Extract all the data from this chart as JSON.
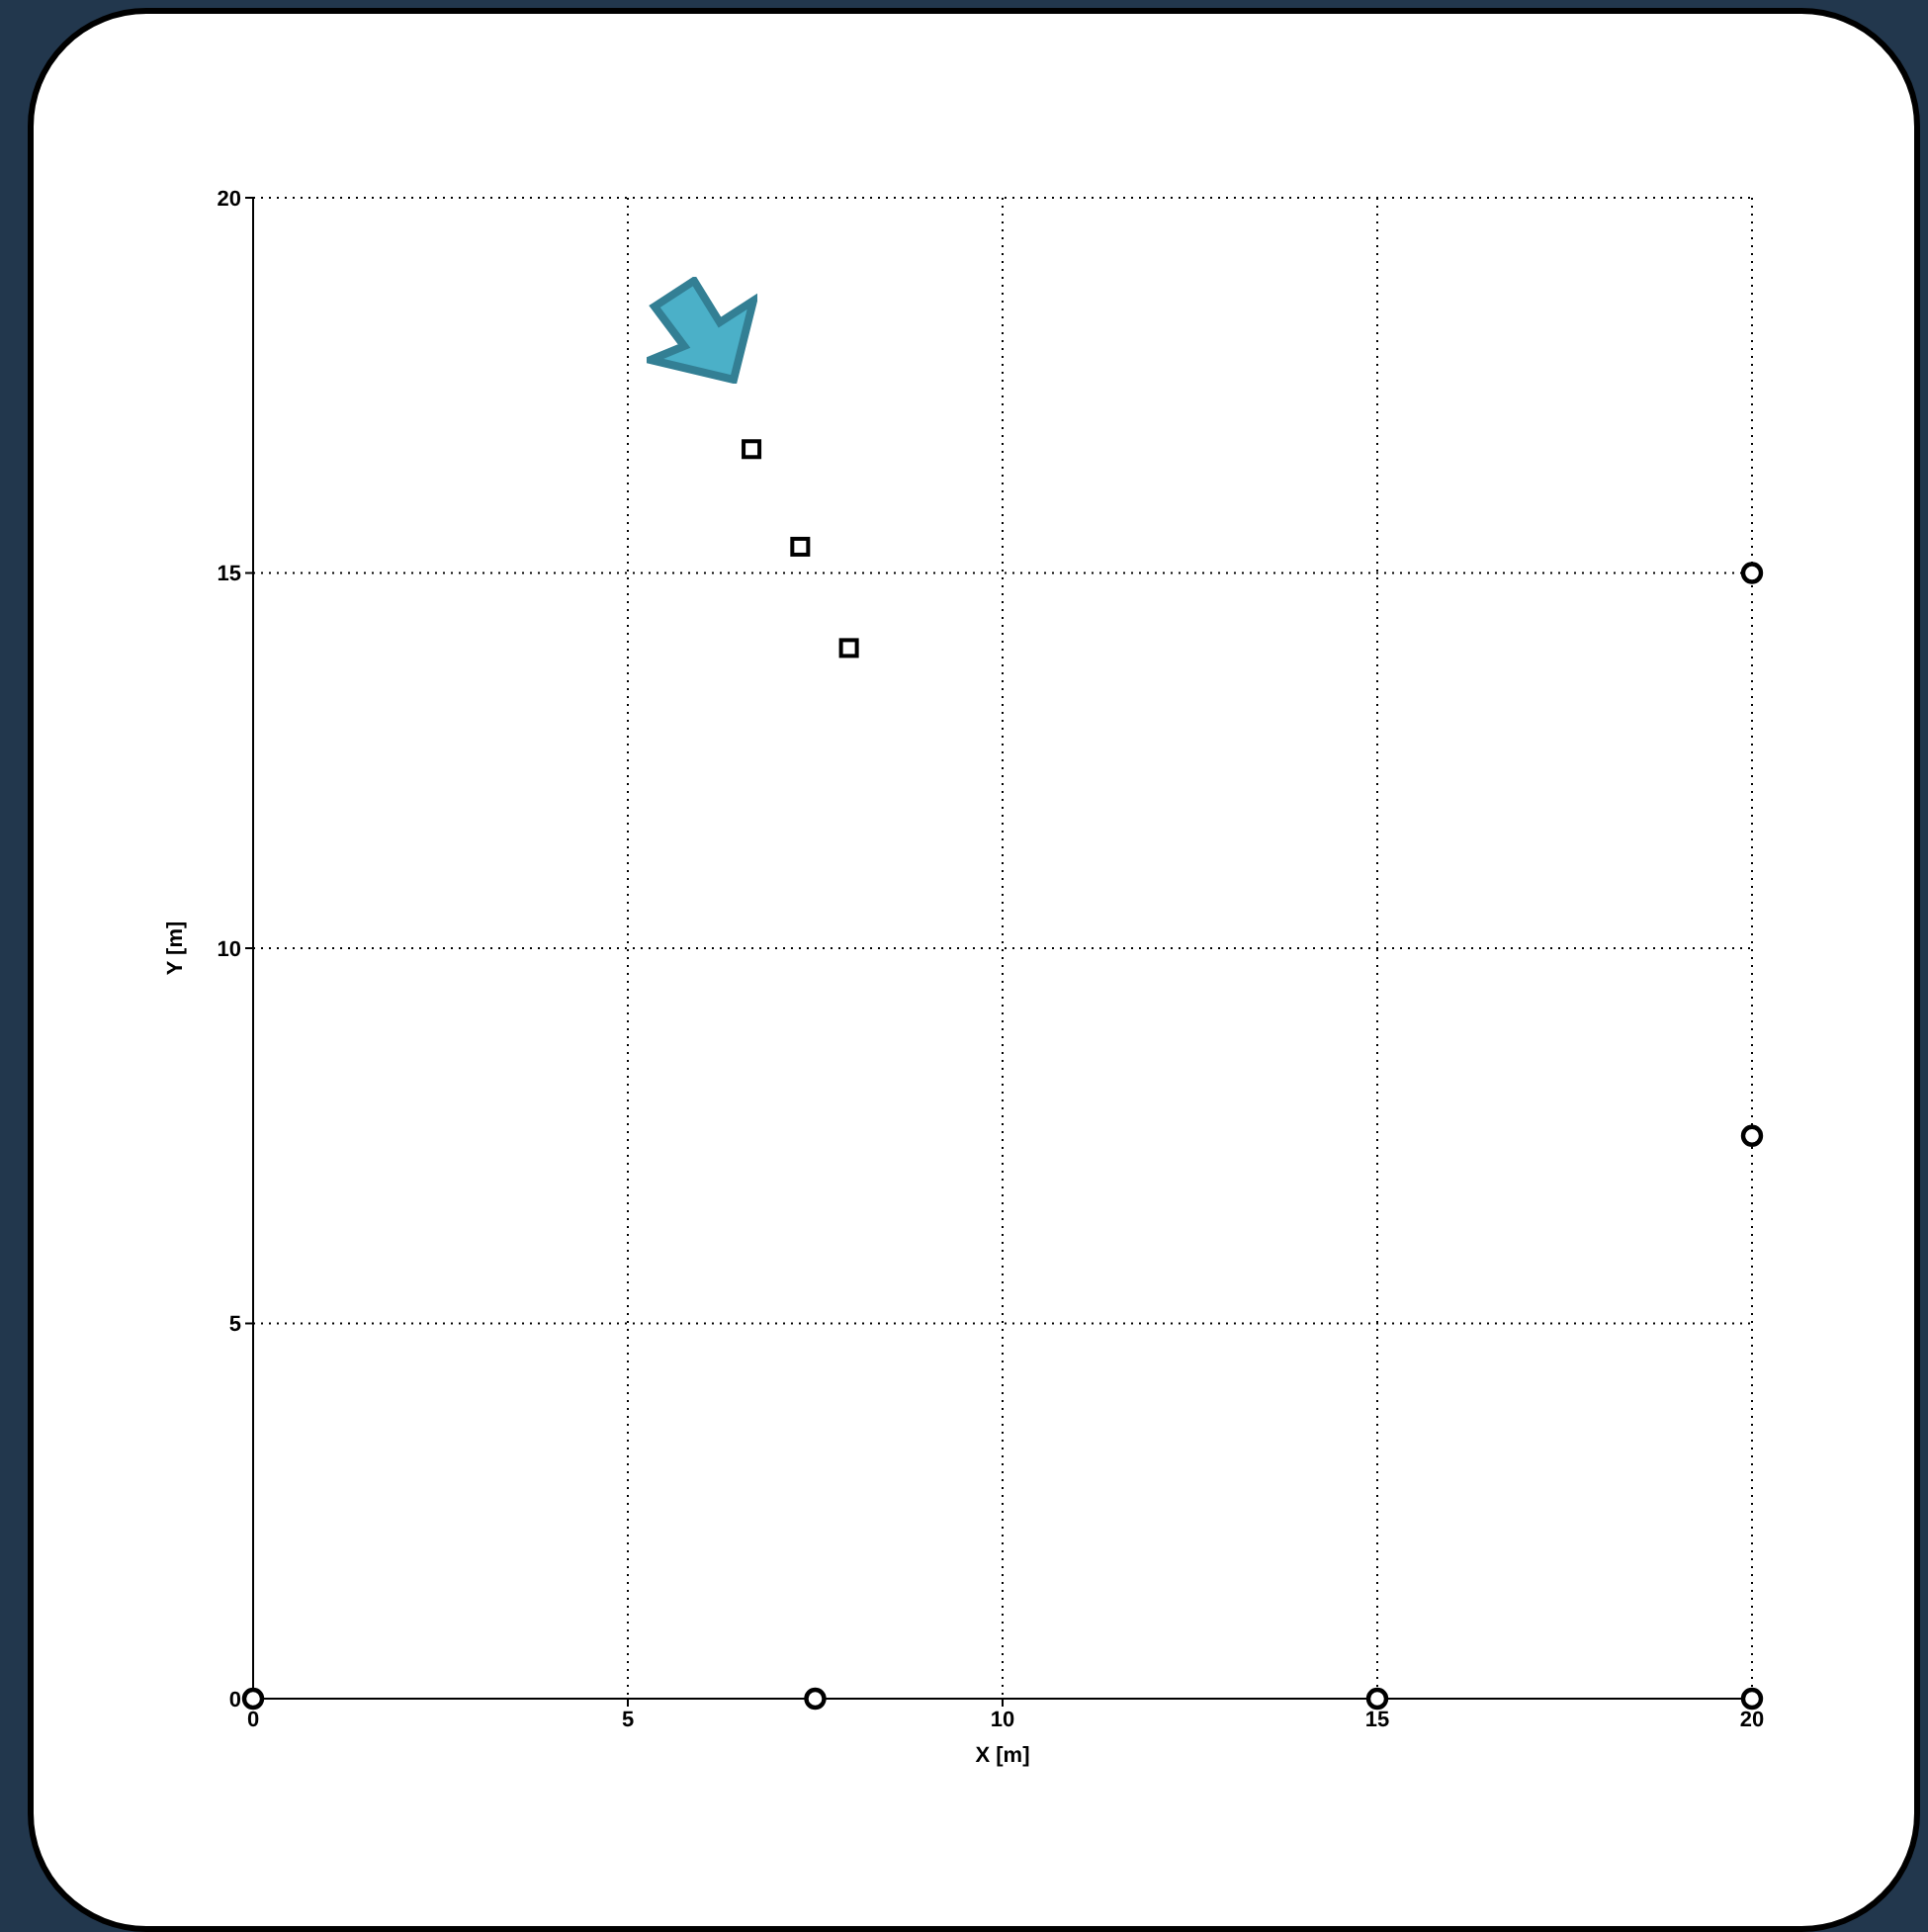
{
  "chart_data": {
    "type": "scatter",
    "xlabel": "X [m]",
    "ylabel": "Y [m]",
    "xlim": [
      0,
      20
    ],
    "ylim": [
      0,
      20
    ],
    "xticks": [
      0,
      5,
      10,
      15,
      20
    ],
    "yticks": [
      0,
      5,
      10,
      15,
      20
    ],
    "grid": true,
    "series": [
      {
        "color": "#000000",
        "marker": "square",
        "x": [
          6.65,
          7.3,
          7.95
        ],
        "values": [
          16.65,
          15.35,
          14
        ]
      },
      {
        "color": "#000000",
        "marker": "circle",
        "x": [
          0,
          7.5,
          15,
          20,
          20,
          20
        ],
        "values": [
          0,
          0,
          0,
          0,
          7.5,
          15
        ]
      }
    ]
  }
}
